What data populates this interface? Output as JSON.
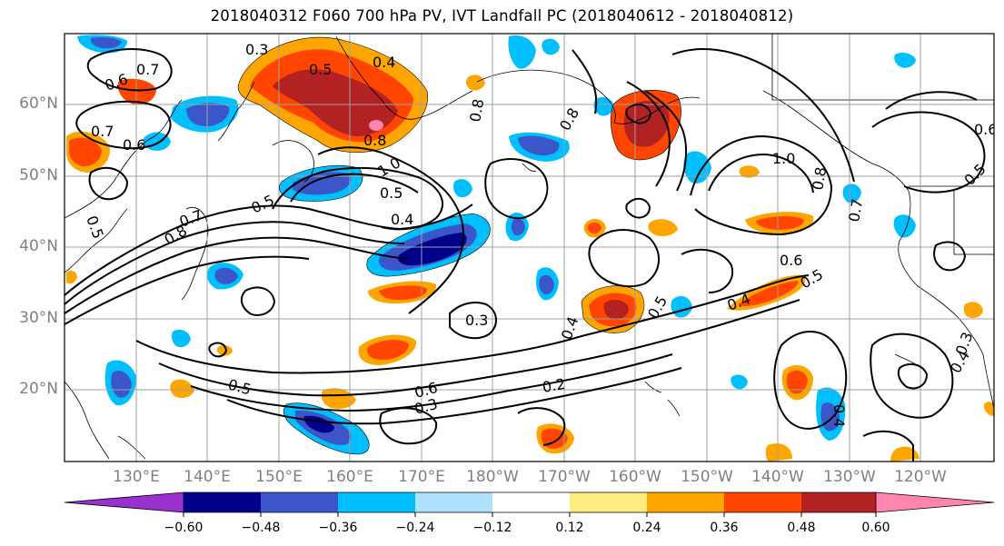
{
  "title": "2018040312 F060 700 hPa PV, IVT Landfall PC (2018040612 - 2018040812)",
  "lat_labels": [
    "60°N",
    "50°N",
    "40°N",
    "30°N",
    "20°N"
  ],
  "lon_labels": [
    "130°E",
    "140°E",
    "150°E",
    "160°E",
    "170°E",
    "180°W",
    "170°W",
    "160°W",
    "150°W",
    "140°W",
    "130°W",
    "120°W"
  ],
  "colorbar": {
    "colors": [
      "#9b30d0",
      "#00008b",
      "#3a56c9",
      "#00bfff",
      "#aee2ff",
      "#ffffff",
      "#ffeb80",
      "#ffa500",
      "#ff4500",
      "#b22222",
      "#ff85b0"
    ],
    "tick_labels": [
      "−0.60",
      "−0.48",
      "−0.36",
      "−0.24",
      "−0.12",
      "0.12",
      "0.24",
      "0.36",
      "0.48",
      "0.60"
    ]
  },
  "contour_labels": [
    "0.3",
    "0.5",
    "0.4",
    "0.6",
    "0.7",
    "0.6",
    "0.7",
    "0.5",
    "0.8",
    "0.8",
    "1.0",
    "0.5",
    "0.4",
    "0.5",
    "0.7",
    "0.8",
    "0.8",
    "1.0",
    "0.8",
    "0.7",
    "0.6",
    "0.5",
    "0.4",
    "0.4",
    "0.5",
    "0.3",
    "0.2",
    "0.6",
    "0.3",
    "0.5",
    "0.4",
    "0.3",
    "0.6",
    "0.5",
    "0.4"
  ]
}
